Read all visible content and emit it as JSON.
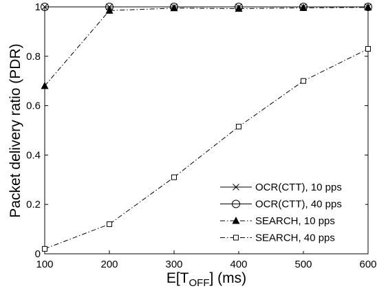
{
  "chart_data": {
    "type": "line",
    "xlabel": {
      "prefix": "E[T",
      "subscript": "OFF",
      "suffix": "] (ms)"
    },
    "ylabel": "Packet delivery ratio (PDR)",
    "xlim": [
      100,
      600
    ],
    "ylim": [
      0,
      1
    ],
    "x": [
      100,
      200,
      300,
      400,
      500,
      600
    ],
    "x_ticks": [
      "100",
      "200",
      "300",
      "400",
      "500",
      "600"
    ],
    "y_ticks": [
      {
        "value": 0,
        "label": "0"
      },
      {
        "value": 0.2,
        "label": "0.2"
      },
      {
        "value": 0.4,
        "label": "0.4"
      },
      {
        "value": 0.6,
        "label": "0.6"
      },
      {
        "value": 0.8,
        "label": "0.8"
      },
      {
        "value": 1,
        "label": "1"
      }
    ],
    "grid": false,
    "legend_position": "bottom-right",
    "series": [
      {
        "name": "OCR(CTT), 10 pps",
        "marker": "x",
        "line": "solid",
        "values": [
          1.0,
          1.0,
          1.0,
          1.0,
          1.0,
          1.0
        ]
      },
      {
        "name": "OCR(CTT), 40 pps",
        "marker": "circle",
        "line": "solid",
        "values": [
          1.0,
          1.0,
          1.0,
          1.0,
          1.0,
          1.0
        ]
      },
      {
        "name": "SEARCH, 10 pps",
        "marker": "triangle",
        "line": "dashdot",
        "values": [
          0.68,
          0.985,
          0.995,
          0.993,
          0.996,
          0.998
        ]
      },
      {
        "name": "SEARCH, 40 pps",
        "marker": "square",
        "line": "dashdot",
        "values": [
          0.02,
          0.12,
          0.31,
          0.515,
          0.7,
          0.83
        ]
      }
    ],
    "colors": {
      "line": "#000000",
      "background": "#ffffff"
    }
  }
}
